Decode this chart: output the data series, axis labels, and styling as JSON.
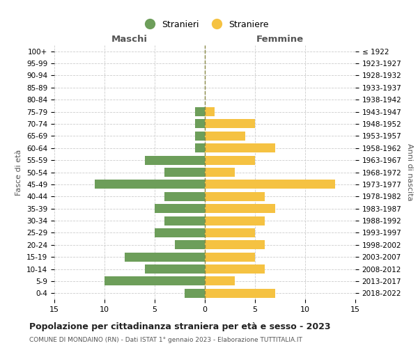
{
  "age_groups": [
    "100+",
    "95-99",
    "90-94",
    "85-89",
    "80-84",
    "75-79",
    "70-74",
    "65-69",
    "60-64",
    "55-59",
    "50-54",
    "45-49",
    "40-44",
    "35-39",
    "30-34",
    "25-29",
    "20-24",
    "15-19",
    "10-14",
    "5-9",
    "0-4"
  ],
  "birth_years": [
    "≤ 1922",
    "1923-1927",
    "1928-1932",
    "1933-1937",
    "1938-1942",
    "1943-1947",
    "1948-1952",
    "1953-1957",
    "1958-1962",
    "1963-1967",
    "1968-1972",
    "1973-1977",
    "1978-1982",
    "1983-1987",
    "1988-1992",
    "1993-1997",
    "1998-2002",
    "2003-2007",
    "2008-2012",
    "2013-2017",
    "2018-2022"
  ],
  "males": [
    0,
    0,
    0,
    0,
    0,
    1,
    1,
    1,
    1,
    6,
    4,
    11,
    4,
    5,
    4,
    5,
    3,
    8,
    6,
    10,
    2
  ],
  "females": [
    0,
    0,
    0,
    0,
    0,
    1,
    5,
    4,
    7,
    5,
    3,
    13,
    6,
    7,
    6,
    5,
    6,
    5,
    6,
    3,
    7
  ],
  "male_color": "#6d9e5a",
  "female_color": "#f5c242",
  "background_color": "#ffffff",
  "grid_color": "#cccccc",
  "title": "Popolazione per cittadinanza straniera per età e sesso - 2023",
  "subtitle": "COMUNE DI MONDAINO (RN) - Dati ISTAT 1° gennaio 2023 - Elaborazione TUTTITALIA.IT",
  "xlabel_left": "Maschi",
  "xlabel_right": "Femmine",
  "ylabel_left": "Fasce di età",
  "ylabel_right": "Anni di nascita",
  "xlim": 15,
  "legend_stranieri": "Stranieri",
  "legend_straniere": "Straniere"
}
